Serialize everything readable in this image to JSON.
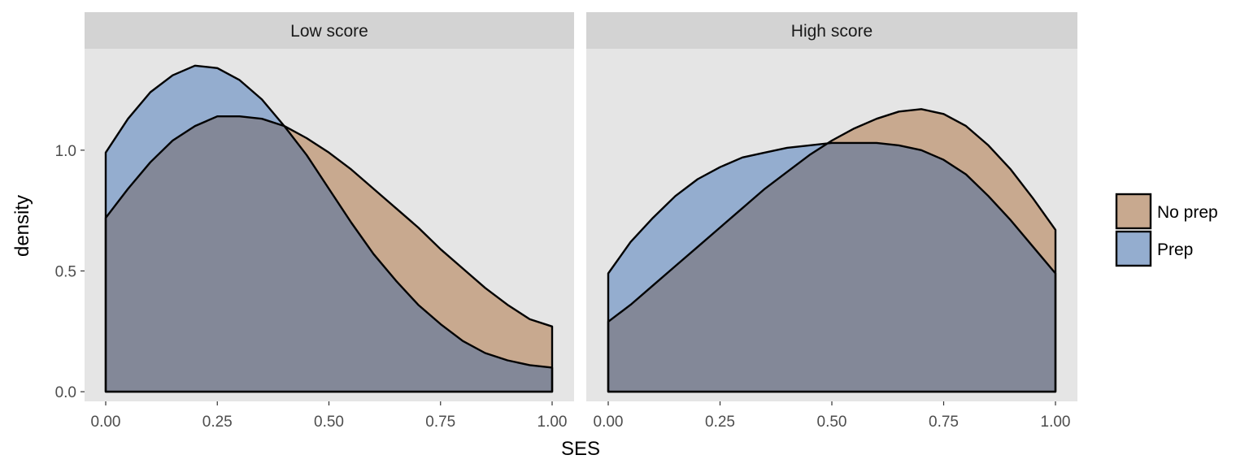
{
  "chart_data": {
    "type": "area",
    "xlabel": "SES",
    "ylabel": "density",
    "xlim": [
      0,
      1
    ],
    "ylim": [
      -0.04,
      1.42
    ],
    "x_ticks": [
      0.0,
      0.25,
      0.5,
      0.75,
      1.0
    ],
    "x_tick_labels": [
      "0.00",
      "0.25",
      "0.50",
      "0.75",
      "1.00"
    ],
    "y_ticks": [
      0.0,
      0.5,
      1.0
    ],
    "y_tick_labels": [
      "0.0",
      "0.5",
      "1.0"
    ],
    "grid": false,
    "legend_position": "right",
    "legend": [
      {
        "key": "noprep",
        "label": "No prep",
        "color": "#C8A98F"
      },
      {
        "key": "prep",
        "label": "Prep",
        "color": "#94ADCF"
      }
    ],
    "overlap_color": "#838898",
    "panel_background": "#E5E5E5",
    "strip_background": "#D3D3D3",
    "panels": [
      {
        "strip": "Low score",
        "series": [
          {
            "key": "noprep",
            "x": [
              0,
              0.05,
              0.1,
              0.15,
              0.2,
              0.25,
              0.3,
              0.35,
              0.4,
              0.45,
              0.5,
              0.55,
              0.6,
              0.65,
              0.7,
              0.75,
              0.8,
              0.85,
              0.9,
              0.95,
              1.0
            ],
            "y": [
              0.72,
              0.84,
              0.95,
              1.04,
              1.1,
              1.14,
              1.14,
              1.13,
              1.1,
              1.05,
              0.99,
              0.92,
              0.84,
              0.76,
              0.68,
              0.59,
              0.51,
              0.43,
              0.36,
              0.3,
              0.27
            ]
          },
          {
            "key": "prep",
            "x": [
              0,
              0.05,
              0.1,
              0.15,
              0.2,
              0.25,
              0.3,
              0.35,
              0.4,
              0.45,
              0.5,
              0.55,
              0.6,
              0.65,
              0.7,
              0.75,
              0.8,
              0.85,
              0.9,
              0.95,
              1.0
            ],
            "y": [
              0.99,
              1.13,
              1.24,
              1.31,
              1.35,
              1.34,
              1.29,
              1.21,
              1.1,
              0.98,
              0.84,
              0.7,
              0.57,
              0.46,
              0.36,
              0.28,
              0.21,
              0.16,
              0.13,
              0.11,
              0.1
            ]
          }
        ]
      },
      {
        "strip": "High score",
        "series": [
          {
            "key": "noprep",
            "x": [
              0,
              0.05,
              0.1,
              0.15,
              0.2,
              0.25,
              0.3,
              0.35,
              0.4,
              0.45,
              0.5,
              0.55,
              0.6,
              0.65,
              0.7,
              0.75,
              0.8,
              0.85,
              0.9,
              0.95,
              1.0
            ],
            "y": [
              0.29,
              0.36,
              0.44,
              0.52,
              0.6,
              0.68,
              0.76,
              0.84,
              0.91,
              0.98,
              1.04,
              1.09,
              1.13,
              1.16,
              1.17,
              1.15,
              1.1,
              1.02,
              0.92,
              0.8,
              0.67
            ]
          },
          {
            "key": "prep",
            "x": [
              0,
              0.05,
              0.1,
              0.15,
              0.2,
              0.25,
              0.3,
              0.35,
              0.4,
              0.45,
              0.5,
              0.55,
              0.6,
              0.65,
              0.7,
              0.75,
              0.8,
              0.85,
              0.9,
              0.95,
              1.0
            ],
            "y": [
              0.49,
              0.62,
              0.72,
              0.81,
              0.88,
              0.93,
              0.97,
              0.99,
              1.01,
              1.02,
              1.03,
              1.03,
              1.03,
              1.02,
              1.0,
              0.96,
              0.9,
              0.81,
              0.71,
              0.6,
              0.49
            ]
          }
        ]
      }
    ]
  }
}
